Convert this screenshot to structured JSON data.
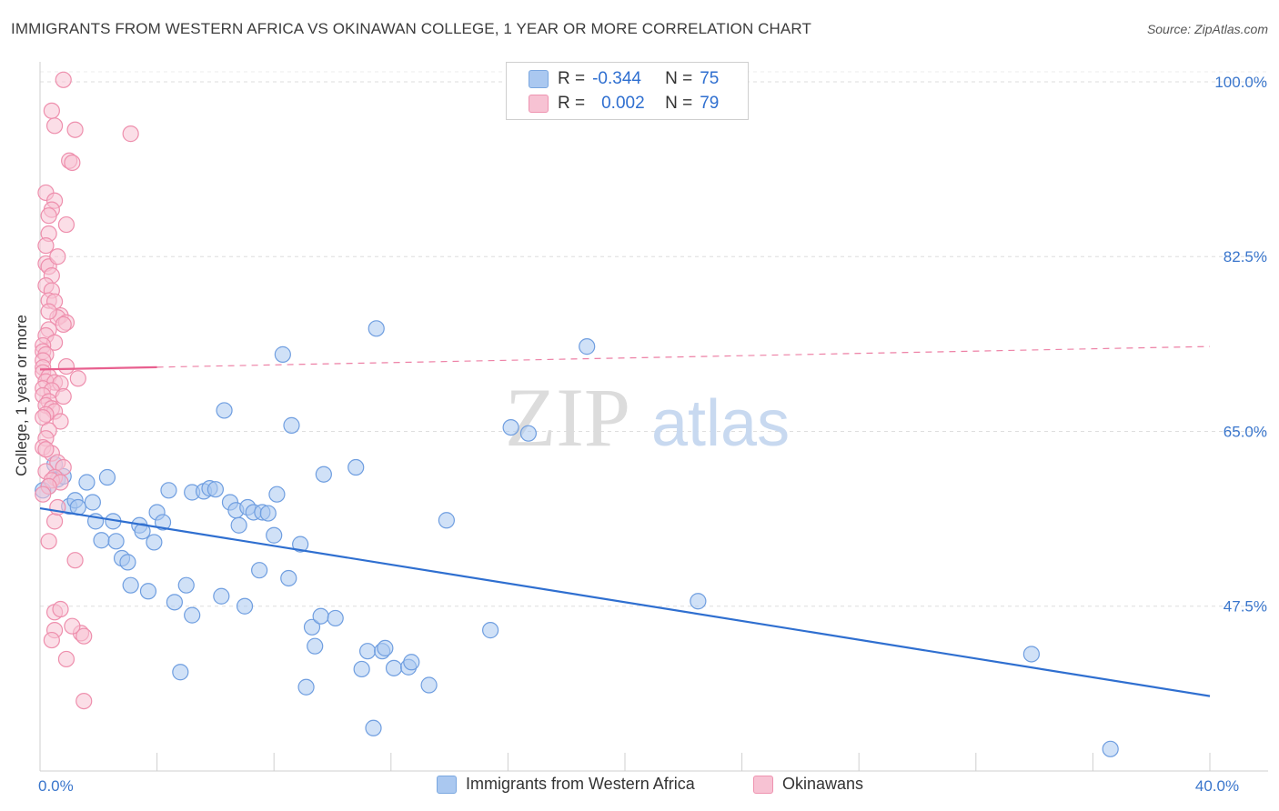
{
  "title": "IMMIGRANTS FROM WESTERN AFRICA VS OKINAWAN COLLEGE, 1 YEAR OR MORE CORRELATION CHART",
  "source": "Source: ZipAtlas.com",
  "legend": {
    "rows": [
      {
        "r_label": "R =",
        "r_value": "-0.344",
        "n_label": "N =",
        "n_value": "75",
        "color": "#aac8f0",
        "border": "#7aa7e0"
      },
      {
        "r_label": "R =",
        "r_value": "0.002",
        "n_label": "N =",
        "n_value": "79",
        "color": "#f7c2d3",
        "border": "#ee93b0"
      }
    ]
  },
  "bottom_legend": [
    {
      "label": "Immigrants from Western Africa",
      "color": "#aac8f0",
      "border": "#7aa7e0"
    },
    {
      "label": "Okinawans",
      "color": "#f7c2d3",
      "border": "#ee93b0"
    }
  ],
  "watermark": {
    "zip": "ZIP",
    "atlas": "atlas"
  },
  "chart_data": {
    "type": "scatter",
    "title": "IMMIGRANTS FROM WESTERN AFRICA VS OKINAWAN COLLEGE, 1 YEAR OR MORE CORRELATION CHART",
    "xlabel": "",
    "ylabel": "College, 1 year or more",
    "xlim": [
      0,
      40
    ],
    "ylim": [
      30,
      102
    ],
    "x_tick_labels": [
      {
        "value": 0,
        "label": "0.0%"
      },
      {
        "value": 40,
        "label": "40.0%"
      }
    ],
    "y_tick_labels": [
      {
        "value": 100,
        "label": "100.0%"
      },
      {
        "value": 82.5,
        "label": "82.5%"
      },
      {
        "value": 65,
        "label": "65.0%"
      },
      {
        "value": 47.5,
        "label": "47.5%"
      }
    ],
    "series": [
      {
        "name": "Immigrants from Western Africa",
        "color": "#aac8f0",
        "stroke": "#6f9ee0",
        "trend": {
          "x0": 0,
          "y0": 57.3,
          "x1": 40,
          "y1": 38.5,
          "color": "#2f6fd0",
          "dashed_from": null
        },
        "points": [
          [
            0.3,
            59.5
          ],
          [
            0.5,
            61.7
          ],
          [
            0.6,
            60.2
          ],
          [
            0.8,
            60.5
          ],
          [
            1.0,
            57.5
          ],
          [
            1.2,
            58.1
          ],
          [
            1.3,
            57.4
          ],
          [
            1.6,
            59.9
          ],
          [
            1.8,
            57.9
          ],
          [
            1.9,
            56.0
          ],
          [
            2.1,
            54.1
          ],
          [
            2.3,
            60.4
          ],
          [
            2.5,
            56.0
          ],
          [
            2.6,
            54.0
          ],
          [
            2.8,
            52.3
          ],
          [
            3.0,
            51.9
          ],
          [
            3.1,
            49.6
          ],
          [
            3.4,
            55.6
          ],
          [
            3.5,
            55.0
          ],
          [
            3.7,
            49.0
          ],
          [
            3.9,
            53.9
          ],
          [
            4.0,
            56.9
          ],
          [
            4.2,
            55.9
          ],
          [
            4.4,
            59.1
          ],
          [
            4.6,
            47.9
          ],
          [
            4.8,
            40.9
          ],
          [
            5.0,
            49.6
          ],
          [
            5.2,
            46.6
          ],
          [
            5.2,
            58.9
          ],
          [
            5.6,
            59.0
          ],
          [
            5.8,
            59.3
          ],
          [
            6.0,
            59.2
          ],
          [
            6.2,
            48.5
          ],
          [
            6.3,
            67.1
          ],
          [
            6.5,
            57.9
          ],
          [
            6.7,
            57.1
          ],
          [
            6.8,
            55.6
          ],
          [
            7.0,
            47.5
          ],
          [
            7.1,
            57.4
          ],
          [
            7.3,
            56.9
          ],
          [
            7.5,
            51.1
          ],
          [
            7.6,
            56.9
          ],
          [
            7.8,
            56.8
          ],
          [
            8.0,
            54.6
          ],
          [
            8.1,
            58.7
          ],
          [
            8.3,
            72.7
          ],
          [
            8.5,
            50.3
          ],
          [
            8.6,
            65.6
          ],
          [
            8.9,
            53.7
          ],
          [
            9.1,
            39.4
          ],
          [
            9.3,
            45.4
          ],
          [
            9.4,
            43.5
          ],
          [
            9.6,
            46.5
          ],
          [
            9.7,
            60.7
          ],
          [
            10.1,
            46.3
          ],
          [
            10.8,
            61.4
          ],
          [
            11.0,
            41.2
          ],
          [
            11.2,
            43.0
          ],
          [
            11.4,
            35.3
          ],
          [
            11.5,
            75.3
          ],
          [
            11.7,
            43.0
          ],
          [
            11.8,
            43.3
          ],
          [
            12.1,
            41.3
          ],
          [
            12.6,
            41.4
          ],
          [
            12.7,
            41.9
          ],
          [
            13.3,
            39.6
          ],
          [
            13.9,
            56.1
          ],
          [
            15.4,
            45.1
          ],
          [
            16.1,
            65.4
          ],
          [
            16.7,
            64.8
          ],
          [
            18.7,
            73.5
          ],
          [
            22.5,
            48.0
          ],
          [
            33.9,
            42.7
          ],
          [
            36.6,
            33.2
          ],
          [
            0.1,
            59.1
          ]
        ]
      },
      {
        "name": "Okinawans",
        "color": "#f7c2d3",
        "stroke": "#ee8fad",
        "trend": {
          "x0": 0,
          "y0": 71.2,
          "x1": 40,
          "y1": 73.5,
          "color": "#e8608f",
          "dashed_from": 4.0
        },
        "points": [
          [
            0.8,
            100.2
          ],
          [
            0.4,
            97.1
          ],
          [
            0.5,
            95.6
          ],
          [
            1.2,
            95.2
          ],
          [
            3.1,
            94.8
          ],
          [
            1.0,
            92.1
          ],
          [
            1.1,
            91.9
          ],
          [
            0.2,
            88.9
          ],
          [
            0.5,
            88.1
          ],
          [
            0.4,
            87.2
          ],
          [
            0.3,
            86.6
          ],
          [
            0.9,
            85.7
          ],
          [
            0.3,
            84.8
          ],
          [
            0.2,
            81.8
          ],
          [
            0.3,
            81.5
          ],
          [
            0.4,
            80.6
          ],
          [
            0.2,
            79.6
          ],
          [
            0.4,
            79.1
          ],
          [
            0.3,
            78.1
          ],
          [
            0.5,
            78.0
          ],
          [
            0.7,
            76.6
          ],
          [
            0.6,
            76.4
          ],
          [
            0.9,
            75.9
          ],
          [
            0.8,
            75.7
          ],
          [
            0.3,
            75.2
          ],
          [
            0.2,
            74.6
          ],
          [
            0.5,
            73.9
          ],
          [
            0.1,
            73.6
          ],
          [
            0.1,
            73.0
          ],
          [
            0.2,
            72.7
          ],
          [
            0.1,
            72.1
          ],
          [
            0.1,
            71.4
          ],
          [
            0.1,
            70.9
          ],
          [
            0.3,
            70.5
          ],
          [
            1.3,
            70.3
          ],
          [
            0.2,
            70.0
          ],
          [
            0.5,
            69.9
          ],
          [
            0.7,
            69.8
          ],
          [
            0.1,
            69.3
          ],
          [
            0.4,
            69.1
          ],
          [
            0.1,
            68.6
          ],
          [
            0.8,
            68.5
          ],
          [
            0.3,
            68.0
          ],
          [
            0.2,
            67.6
          ],
          [
            0.4,
            67.3
          ],
          [
            0.5,
            67.0
          ],
          [
            0.2,
            66.7
          ],
          [
            0.1,
            66.4
          ],
          [
            0.7,
            66.0
          ],
          [
            0.3,
            65.1
          ],
          [
            0.2,
            64.3
          ],
          [
            0.1,
            63.4
          ],
          [
            0.4,
            62.8
          ],
          [
            0.6,
            61.9
          ],
          [
            0.8,
            61.4
          ],
          [
            0.2,
            61.0
          ],
          [
            0.5,
            60.4
          ],
          [
            0.4,
            60.1
          ],
          [
            0.7,
            59.9
          ],
          [
            0.3,
            59.5
          ],
          [
            0.1,
            58.7
          ],
          [
            0.5,
            56.0
          ],
          [
            1.2,
            52.1
          ],
          [
            0.5,
            46.9
          ],
          [
            0.5,
            45.1
          ],
          [
            0.4,
            44.1
          ],
          [
            1.4,
            44.8
          ],
          [
            1.5,
            44.5
          ],
          [
            0.9,
            42.2
          ],
          [
            1.5,
            38.0
          ],
          [
            0.2,
            83.6
          ],
          [
            0.6,
            82.5
          ],
          [
            0.3,
            77.0
          ],
          [
            0.9,
            71.5
          ],
          [
            0.2,
            63.2
          ],
          [
            0.6,
            57.4
          ],
          [
            0.3,
            54.0
          ],
          [
            0.7,
            47.2
          ],
          [
            1.1,
            45.5
          ]
        ]
      }
    ]
  }
}
